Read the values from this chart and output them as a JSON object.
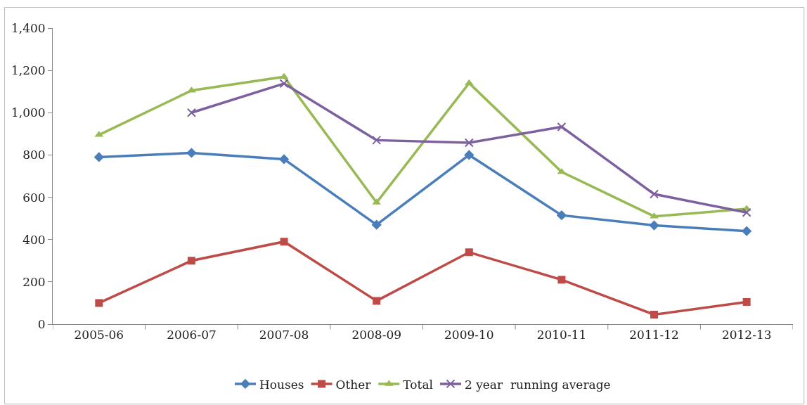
{
  "chart_data": {
    "type": "line",
    "categories": [
      "2005-06",
      "2006-07",
      "2007-08",
      "2008-09",
      "2009-10",
      "2010-11",
      "2011-12",
      "2012-13"
    ],
    "series": [
      {
        "name": "Houses",
        "color": "#4a7ebb",
        "marker": "diamond",
        "values": [
          790,
          810,
          780,
          470,
          800,
          515,
          467,
          440
        ]
      },
      {
        "name": "Other",
        "color": "#be4b48",
        "marker": "square",
        "values": [
          100,
          300,
          390,
          110,
          340,
          210,
          45,
          105
        ]
      },
      {
        "name": "Total",
        "color": "#98b954",
        "marker": "triangle",
        "values": [
          895,
          1105,
          1170,
          575,
          1140,
          720,
          510,
          545
        ]
      },
      {
        "name": "2 year  running average",
        "color": "#7d60a0",
        "marker": "cross",
        "values": [
          null,
          1000,
          1138,
          870,
          858,
          933,
          615,
          528
        ]
      }
    ],
    "ylim": [
      0,
      1400
    ],
    "yticks": [
      {
        "value": 0,
        "label": "0"
      },
      {
        "value": 200,
        "label": "200"
      },
      {
        "value": 400,
        "label": "400"
      },
      {
        "value": 600,
        "label": "600"
      },
      {
        "value": 800,
        "label": "800"
      },
      {
        "value": 1000,
        "label": "1,000"
      },
      {
        "value": 1200,
        "label": "1,200"
      },
      {
        "value": 1400,
        "label": "1,400"
      }
    ],
    "grid": false,
    "legend": "bottom",
    "line_style": "solid"
  }
}
